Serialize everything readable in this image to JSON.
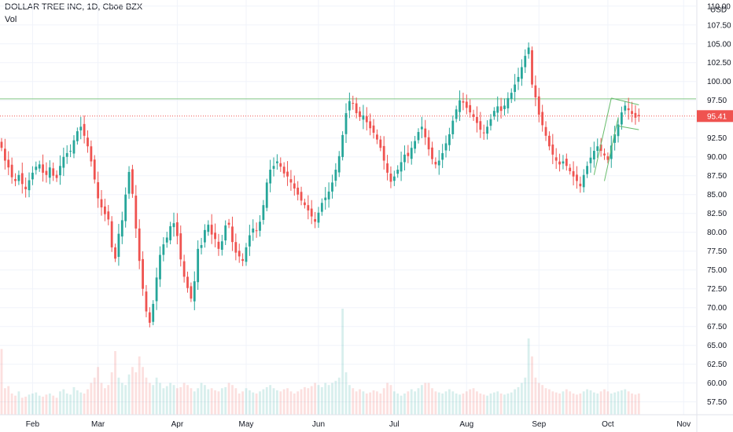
{
  "chart_data": {
    "type": "candlestick",
    "title": "DOLLAR TREE INC, 1D, Cboe BZX",
    "volume_label": "Vol",
    "currency": "USD",
    "y_ticks": [
      57.5,
      60,
      62.5,
      65,
      67.5,
      70,
      72.5,
      75,
      77.5,
      80,
      82.5,
      85,
      87.5,
      90,
      92.5,
      95,
      97.5,
      100,
      102.5,
      105,
      107.5,
      110
    ],
    "y_tick_labels": [
      "57.50",
      "60.00",
      "62.50",
      "65.00",
      "67.50",
      "70.00",
      "72.50",
      "75.00",
      "77.50",
      "80.00",
      "82.50",
      "85.00",
      "87.50",
      "90.00",
      "92.50",
      "95.00",
      "97.50",
      "100.00",
      "102.50",
      "105.00",
      "107.50",
      "110.00"
    ],
    "ylim": [
      55.8,
      110.6
    ],
    "x_tick_labels": [
      {
        "label": "Feb",
        "bar": 9
      },
      {
        "label": "Mar",
        "bar": 28
      },
      {
        "label": "Apr",
        "bar": 51
      },
      {
        "label": "May",
        "bar": 71
      },
      {
        "label": "Jun",
        "bar": 92
      },
      {
        "label": "Jul",
        "bar": 114
      },
      {
        "label": "Aug",
        "bar": 135
      },
      {
        "label": "Sep",
        "bar": 156
      },
      {
        "label": "Oct",
        "bar": 176
      },
      {
        "label": "Nov",
        "bar": 198
      }
    ],
    "resistance_level": 97.7,
    "last_price": 95.41,
    "last_price_label": "95.41",
    "closes": [
      91.2,
      89.5,
      88.6,
      87.3,
      86.8,
      87.6,
      86.4,
      85.7,
      86.9,
      87.9,
      88.7,
      89.0,
      87.9,
      87.6,
      88.6,
      87.5,
      87.2,
      88.8,
      90.0,
      90.5,
      90.8,
      92.2,
      93.4,
      94.0,
      92.8,
      91.4,
      89.4,
      87.0,
      84.5,
      83.3,
      82.4,
      81.7,
      78.0,
      76.5,
      79.8,
      81.6,
      85.0,
      88.0,
      85.1,
      80.5,
      76.2,
      72.5,
      69.5,
      68.0,
      70.5,
      74.0,
      77.0,
      78.4,
      79.3,
      80.8,
      81.2,
      79.5,
      76.4,
      74.1,
      72.6,
      71.2,
      73.5,
      77.8,
      78.3,
      80.3,
      81.0,
      79.7,
      79.1,
      77.8,
      78.8,
      80.9,
      81.0,
      78.7,
      77.3,
      76.8,
      76.2,
      78.0,
      79.6,
      80.5,
      80.2,
      81.4,
      83.6,
      86.6,
      88.3,
      88.8,
      89.4,
      88.7,
      87.8,
      87.4,
      86.6,
      85.8,
      85.0,
      84.2,
      83.6,
      82.9,
      82.1,
      81.4,
      82.6,
      83.9,
      84.6,
      85.4,
      86.6,
      88.3,
      90.1,
      92.9,
      95.8,
      97.4,
      97.1,
      95.8,
      95.3,
      95.5,
      94.6,
      93.8,
      93.2,
      92.3,
      91.2,
      89.5,
      87.9,
      86.7,
      87.4,
      88.3,
      89.3,
      90.3,
      90.1,
      91.2,
      92.1,
      93.3,
      94.0,
      92.6,
      91.0,
      89.7,
      89.0,
      89.5,
      90.5,
      91.8,
      93.0,
      94.8,
      96.3,
      97.5,
      97.2,
      96.5,
      95.9,
      95.3,
      94.5,
      93.6,
      93.2,
      94.0,
      95.0,
      96.1,
      96.7,
      96.1,
      96.8,
      97.8,
      98.5,
      99.6,
      100.6,
      101.9,
      103.4,
      104.5,
      99.6,
      97.9,
      95.6,
      94.2,
      92.8,
      91.4,
      90.3,
      89.5,
      89.0,
      89.4,
      88.8,
      88.1,
      87.4,
      86.8,
      86.1,
      87.6,
      88.8,
      89.9,
      90.8,
      91.4,
      90.8,
      90.2,
      89.6,
      91.5,
      93.0,
      94.3,
      95.9,
      96.8,
      96.2,
      95.7,
      95.2,
      95.41
    ],
    "volumes": [
      0.62,
      0.25,
      0.27,
      0.2,
      0.18,
      0.22,
      0.16,
      0.17,
      0.19,
      0.2,
      0.21,
      0.18,
      0.17,
      0.19,
      0.2,
      0.18,
      0.16,
      0.22,
      0.24,
      0.2,
      0.19,
      0.26,
      0.23,
      0.21,
      0.2,
      0.24,
      0.3,
      0.35,
      0.45,
      0.3,
      0.25,
      0.28,
      0.4,
      0.6,
      0.35,
      0.3,
      0.28,
      0.38,
      0.45,
      0.4,
      0.55,
      0.45,
      0.35,
      0.3,
      0.28,
      0.35,
      0.3,
      0.25,
      0.27,
      0.3,
      0.28,
      0.25,
      0.26,
      0.3,
      0.28,
      0.25,
      0.22,
      0.25,
      0.3,
      0.28,
      0.24,
      0.25,
      0.23,
      0.22,
      0.25,
      0.26,
      0.3,
      0.28,
      0.25,
      0.2,
      0.22,
      0.25,
      0.23,
      0.21,
      0.2,
      0.22,
      0.24,
      0.26,
      0.28,
      0.25,
      0.23,
      0.22,
      0.24,
      0.25,
      0.22,
      0.2,
      0.22,
      0.24,
      0.26,
      0.25,
      0.27,
      0.3,
      0.28,
      0.26,
      0.3,
      0.28,
      0.3,
      0.32,
      0.35,
      1.0,
      0.4,
      0.28,
      0.25,
      0.22,
      0.24,
      0.22,
      0.2,
      0.21,
      0.23,
      0.22,
      0.2,
      0.25,
      0.3,
      0.28,
      0.22,
      0.2,
      0.18,
      0.2,
      0.22,
      0.24,
      0.22,
      0.25,
      0.28,
      0.3,
      0.3,
      0.25,
      0.22,
      0.21,
      0.2,
      0.22,
      0.24,
      0.22,
      0.2,
      0.19,
      0.2,
      0.22,
      0.24,
      0.25,
      0.22,
      0.2,
      0.19,
      0.18,
      0.2,
      0.21,
      0.22,
      0.2,
      0.19,
      0.2,
      0.21,
      0.24,
      0.26,
      0.3,
      0.35,
      0.72,
      0.55,
      0.35,
      0.3,
      0.28,
      0.25,
      0.24,
      0.22,
      0.21,
      0.2,
      0.22,
      0.24,
      0.22,
      0.2,
      0.19,
      0.2,
      0.22,
      0.24,
      0.23,
      0.21,
      0.2,
      0.22,
      0.24,
      0.22,
      0.2,
      0.21,
      0.22,
      0.23,
      0.24,
      0.22,
      0.2,
      0.19,
      0.2
    ]
  }
}
